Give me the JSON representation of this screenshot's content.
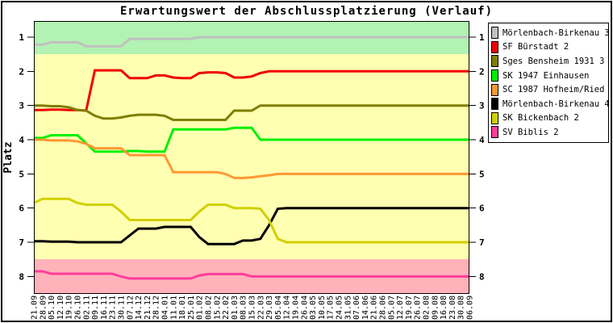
{
  "title": "Erwartungswert der Abschlussplatzierung (Verlauf)",
  "chart_data": {
    "type": "line",
    "title": "Erwartungswert der Abschlussplatzierung (Verlauf)",
    "xlabel": "",
    "ylabel": "Platz",
    "y_ticks": [
      1,
      2,
      3,
      4,
      5,
      6,
      7,
      8
    ],
    "ylim": [
      0.5,
      8.5
    ],
    "y_inverted": true,
    "grid": false,
    "legend_position": "right",
    "bands": [
      {
        "name": "top-zone",
        "from": 0.5,
        "to": 1.5,
        "color": "#b2f2b2"
      },
      {
        "name": "middle-zone",
        "from": 1.5,
        "to": 7.5,
        "color": "#ffffb2"
      },
      {
        "name": "bottom-zone",
        "from": 7.5,
        "to": 8.5,
        "color": "#ffb2ba"
      }
    ],
    "x_labels": [
      "21.09",
      "28.09",
      "05.10",
      "12.10",
      "19.10",
      "26.10",
      "02.11",
      "09.11",
      "16.11",
      "23.11",
      "30.11",
      "07.12",
      "14.12",
      "21.12",
      "28.12",
      "04.01",
      "11.01",
      "18.01",
      "25.01",
      "01.02",
      "08.02",
      "15.02",
      "22.02",
      "01.03",
      "08.03",
      "15.03",
      "22.03",
      "29.03",
      "05.04",
      "12.04",
      "19.04",
      "26.04",
      "03.05",
      "10.05",
      "17.05",
      "24.05",
      "31.05",
      "07.06",
      "14.06",
      "21.06",
      "28.06",
      "05.07",
      "12.07",
      "19.07",
      "26.07",
      "02.08",
      "09.08",
      "16.08",
      "23.08",
      "30.08",
      "06.09"
    ],
    "series": [
      {
        "name": "Mörlenbach-Birkenau 3",
        "color": "#c0c0c0",
        "values": [
          1.22,
          1.22,
          1.15,
          1.15,
          1.15,
          1.15,
          1.27,
          1.27,
          1.27,
          1.27,
          1.27,
          1.05,
          1.05,
          1.05,
          1.05,
          1.05,
          1.05,
          1.05,
          1.05,
          1.0,
          1.0,
          1.0,
          1.0,
          1.0,
          1.0,
          1.0,
          1.0,
          1.0,
          1.0,
          1.0,
          1.0,
          1.0,
          1.0,
          1.0,
          1.0,
          1.0,
          1.0,
          1.0,
          1.0,
          1.0,
          1.0,
          1.0,
          1.0,
          1.0,
          1.0,
          1.0,
          1.0,
          1.0,
          1.0,
          1.0,
          1.0
        ]
      },
      {
        "name": "SF Bürstadt 2",
        "color": "#f00000",
        "values": [
          3.13,
          3.13,
          3.12,
          3.12,
          3.13,
          3.13,
          3.15,
          1.97,
          1.97,
          1.97,
          1.97,
          2.2,
          2.2,
          2.2,
          2.12,
          2.12,
          2.18,
          2.2,
          2.2,
          2.05,
          2.03,
          2.03,
          2.05,
          2.18,
          2.18,
          2.15,
          2.05,
          2.0,
          2.0,
          2.0,
          2.0,
          2.0,
          2.0,
          2.0,
          2.0,
          2.0,
          2.0,
          2.0,
          2.0,
          2.0,
          2.0,
          2.0,
          2.0,
          2.0,
          2.0,
          2.0,
          2.0,
          2.0,
          2.0,
          2.0,
          2.0
        ]
      },
      {
        "name": "Sges Bensheim 1931 3",
        "color": "#7e7e00",
        "values": [
          3.0,
          3.0,
          3.02,
          3.02,
          3.05,
          3.13,
          3.15,
          3.3,
          3.38,
          3.38,
          3.35,
          3.3,
          3.27,
          3.27,
          3.27,
          3.3,
          3.42,
          3.42,
          3.42,
          3.42,
          3.42,
          3.42,
          3.42,
          3.15,
          3.15,
          3.15,
          3.0,
          3.0,
          3.0,
          3.0,
          3.0,
          3.0,
          3.0,
          3.0,
          3.0,
          3.0,
          3.0,
          3.0,
          3.0,
          3.0,
          3.0,
          3.0,
          3.0,
          3.0,
          3.0,
          3.0,
          3.0,
          3.0,
          3.0,
          3.0,
          3.0
        ]
      },
      {
        "name": "SK 1947 Einhausen",
        "color": "#00f000",
        "values": [
          3.95,
          3.95,
          3.87,
          3.87,
          3.87,
          3.87,
          4.1,
          4.35,
          4.35,
          4.35,
          4.35,
          4.33,
          4.33,
          4.35,
          4.35,
          4.35,
          3.7,
          3.7,
          3.7,
          3.7,
          3.7,
          3.7,
          3.7,
          3.65,
          3.65,
          3.65,
          4.0,
          4.0,
          4.0,
          4.0,
          4.0,
          4.0,
          4.0,
          4.0,
          4.0,
          4.0,
          4.0,
          4.0,
          4.0,
          4.0,
          4.0,
          4.0,
          4.0,
          4.0,
          4.0,
          4.0,
          4.0,
          4.0,
          4.0,
          4.0,
          4.0
        ]
      },
      {
        "name": "SC 1987 Hofheim/Ried",
        "color": "#ff9933",
        "values": [
          4.0,
          4.0,
          4.02,
          4.02,
          4.02,
          4.05,
          4.12,
          4.25,
          4.25,
          4.25,
          4.25,
          4.45,
          4.45,
          4.45,
          4.45,
          4.45,
          4.95,
          4.95,
          4.95,
          4.95,
          4.95,
          4.95,
          5.0,
          5.12,
          5.12,
          5.1,
          5.07,
          5.04,
          5.0,
          5.0,
          5.0,
          5.0,
          5.0,
          5.0,
          5.0,
          5.0,
          5.0,
          5.0,
          5.0,
          5.0,
          5.0,
          5.0,
          5.0,
          5.0,
          5.0,
          5.0,
          5.0,
          5.0,
          5.0,
          5.0,
          5.0
        ]
      },
      {
        "name": "Mörlenbach-Birkenau 4",
        "color": "#000000",
        "values": [
          6.97,
          6.97,
          6.98,
          6.98,
          6.98,
          7.0,
          7.0,
          7.0,
          7.0,
          7.0,
          7.0,
          6.8,
          6.6,
          6.6,
          6.6,
          6.55,
          6.55,
          6.55,
          6.55,
          6.85,
          7.05,
          7.05,
          7.05,
          7.05,
          6.95,
          6.95,
          6.9,
          6.5,
          6.02,
          6.0,
          6.0,
          6.0,
          6.0,
          6.0,
          6.0,
          6.0,
          6.0,
          6.0,
          6.0,
          6.0,
          6.0,
          6.0,
          6.0,
          6.0,
          6.0,
          6.0,
          6.0,
          6.0,
          6.0,
          6.0,
          6.0
        ]
      },
      {
        "name": "SK Bickenbach 2",
        "color": "#d0d000",
        "values": [
          5.85,
          5.73,
          5.73,
          5.73,
          5.73,
          5.85,
          5.9,
          5.9,
          5.9,
          5.9,
          6.1,
          6.35,
          6.35,
          6.35,
          6.35,
          6.35,
          6.35,
          6.35,
          6.35,
          6.1,
          5.9,
          5.9,
          5.9,
          6.0,
          6.0,
          6.0,
          6.02,
          6.35,
          6.9,
          7.0,
          7.0,
          7.0,
          7.0,
          7.0,
          7.0,
          7.0,
          7.0,
          7.0,
          7.0,
          7.0,
          7.0,
          7.0,
          7.0,
          7.0,
          7.0,
          7.0,
          7.0,
          7.0,
          7.0,
          7.0,
          7.0
        ]
      },
      {
        "name": "SV Biblis 2",
        "color": "#ff3d9c",
        "values": [
          7.85,
          7.85,
          7.92,
          7.92,
          7.92,
          7.92,
          7.92,
          7.92,
          7.92,
          7.92,
          8.0,
          8.06,
          8.06,
          8.06,
          8.06,
          8.06,
          8.06,
          8.06,
          8.06,
          7.97,
          7.93,
          7.93,
          7.93,
          7.93,
          7.93,
          8.0,
          8.0,
          8.0,
          8.0,
          8.0,
          8.0,
          8.0,
          8.0,
          8.0,
          8.0,
          8.0,
          8.0,
          8.0,
          8.0,
          8.0,
          8.0,
          8.0,
          8.0,
          8.0,
          8.0,
          8.0,
          8.0,
          8.0,
          8.0,
          8.0,
          8.0
        ]
      }
    ]
  }
}
